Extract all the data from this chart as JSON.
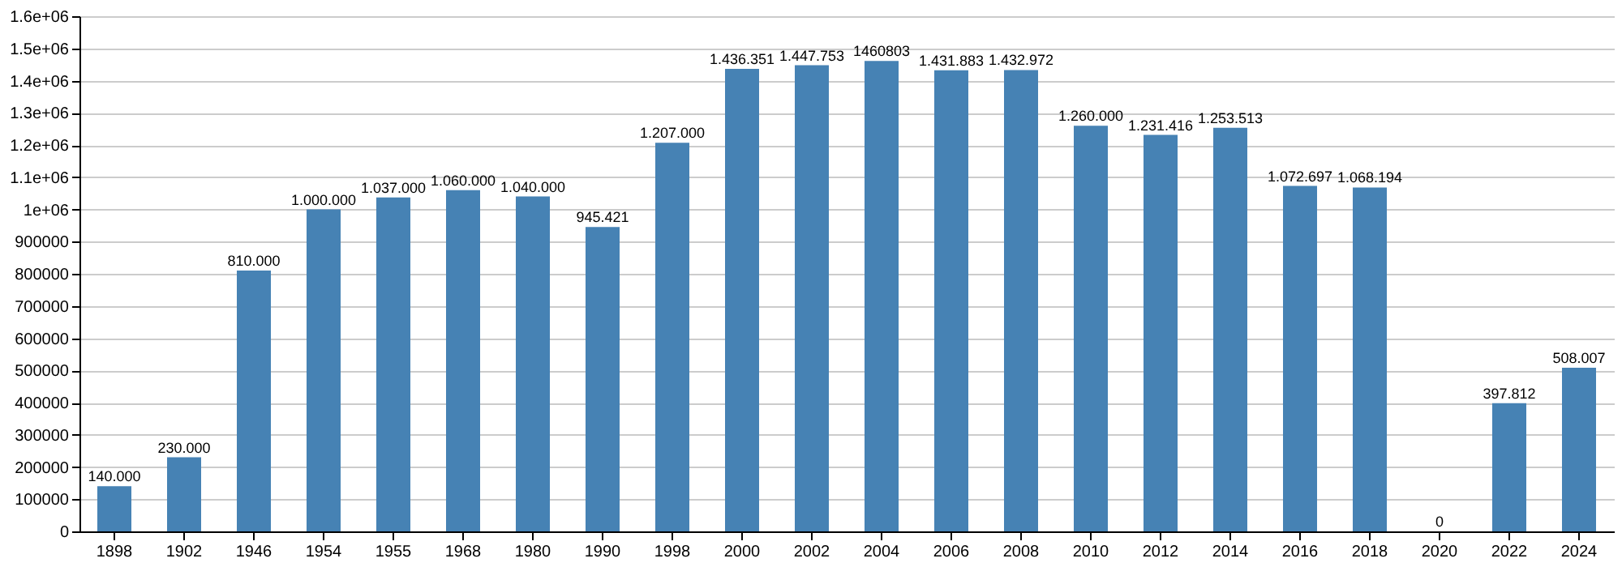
{
  "chart_data": {
    "type": "bar",
    "categories": [
      "1898",
      "1902",
      "1946",
      "1954",
      "1955",
      "1968",
      "1980",
      "1990",
      "1998",
      "2000",
      "2002",
      "2004",
      "2006",
      "2008",
      "2010",
      "2012",
      "2014",
      "2016",
      "2018",
      "2020",
      "2022",
      "2024"
    ],
    "values": [
      140000,
      230000,
      810000,
      1000000,
      1037000,
      1060000,
      1040000,
      945421,
      1207000,
      1436351,
      1447753,
      1460803,
      1431883,
      1432972,
      1260000,
      1231416,
      1253513,
      1072697,
      1068194,
      0,
      397812,
      508007
    ],
    "value_labels": [
      "140.000",
      "230.000",
      "810.000",
      "1.000.000",
      "1.037.000",
      "1.060.000",
      "1.040.000",
      "945.421",
      "1.207.000",
      "1.436.351",
      "1.447.753",
      "1460803",
      "1.431.883",
      "1.432.972",
      "1.260.000",
      "1.231.416",
      "1.253.513",
      "1.072.697",
      "1.068.194",
      "0",
      "397.812",
      "508.007"
    ],
    "color": "#4682b4",
    "ylim": [
      0,
      1600000
    ],
    "yticks": [
      0,
      100000,
      200000,
      300000,
      400000,
      500000,
      600000,
      700000,
      800000,
      900000,
      {
        "value": 1000000,
        "label": "1e+06"
      },
      {
        "value": 1100000,
        "label": "1.1e+06"
      },
      {
        "value": 1200000,
        "label": "1.2e+06"
      },
      {
        "value": 1300000,
        "label": "1.3e+06"
      },
      {
        "value": 1400000,
        "label": "1.4e+06"
      },
      {
        "value": 1500000,
        "label": "1.5e+06"
      },
      {
        "value": 1600000,
        "label": "1.6e+06"
      }
    ],
    "grid": "y"
  }
}
